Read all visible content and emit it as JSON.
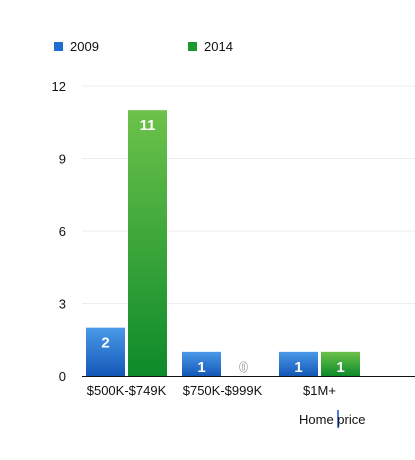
{
  "chart_data": {
    "type": "bar",
    "categories": [
      "$500K-$749K",
      "$750K-$999K",
      "$1M+"
    ],
    "series": [
      {
        "name": "2009",
        "values": [
          2,
          1,
          1
        ],
        "color": "#1f6fd1"
      },
      {
        "name": "2014",
        "values": [
          11,
          0,
          1
        ],
        "color": "#1a9a2e"
      }
    ],
    "yticks": [
      "0",
      "3",
      "6",
      "9",
      "12"
    ],
    "ylim": [
      0,
      12
    ],
    "xlabel": "Home price",
    "ylabel": "",
    "grid": true,
    "legend_position": "top-left"
  }
}
